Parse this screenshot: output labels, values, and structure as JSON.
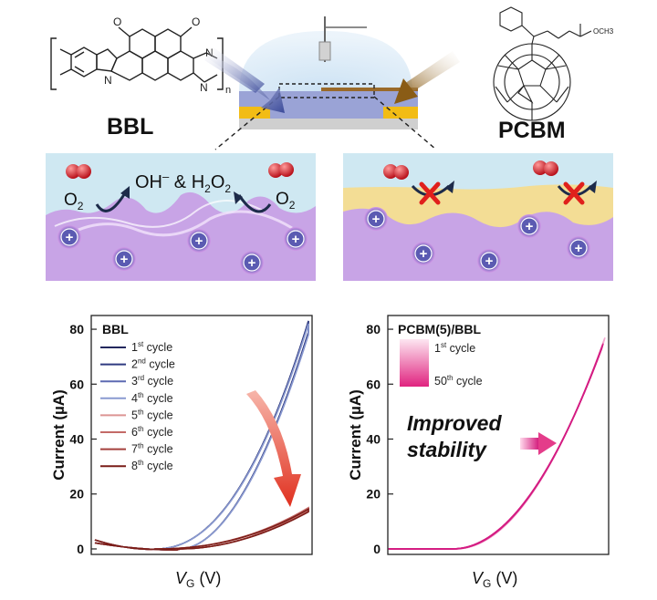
{
  "top": {
    "bbl_label": "BBL",
    "pcbm_label": "PCBM",
    "bbl_struct": {
      "o1": "O",
      "o2": "O",
      "n_label": "N",
      "n_sub": "n",
      "ch3o": "OCH3"
    },
    "ox_left": {
      "o2_a": "O",
      "o2_a_sub": "2",
      "oh": "OH",
      "oh_sup": "–",
      "amp": "&",
      "h2o2": "H",
      "h2o2_sub1": "2",
      "h2o2_o": "O",
      "h2o2_sub2": "2",
      "o2_b": "O",
      "o2_b_sub": "2"
    },
    "plus": "+"
  },
  "colors": {
    "bbl_line": "#2b3a77",
    "pcbm_fill": "#e12d8f",
    "red_arrow": "#e63a2c",
    "cross": "#e0201c",
    "polymer": "#c9a6e6",
    "electrolyte": "#cfe9f2",
    "pcbm_layer": "#f3dd95",
    "ion": "#5b5bb2"
  },
  "chart_data": [
    {
      "type": "line",
      "title": "BBL",
      "xlabel": "VG (V)",
      "ylabel": "Current (µA)",
      "ylim": [
        -2,
        85
      ],
      "yticks": [
        0,
        20,
        40,
        60,
        80
      ],
      "legend_position": "top-left",
      "grid": false,
      "series": [
        {
          "name": "1st cycle",
          "sup": "st",
          "base": "1",
          "color": "#23285e",
          "y_max": 83,
          "y_back": 79
        },
        {
          "name": "2nd cycle",
          "sup": "nd",
          "base": "2",
          "color": "#2f3a80",
          "y_max": 83,
          "y_back": 79
        },
        {
          "name": "3rd cycle",
          "sup": "rd",
          "base": "3",
          "color": "#5d6ab2",
          "y_max": 82,
          "y_back": 78
        },
        {
          "name": "4th cycle",
          "sup": "th",
          "base": "4",
          "color": "#8a9ad0",
          "y_max": 82,
          "y_back": 78
        },
        {
          "name": "5th cycle",
          "sup": "th",
          "base": "5",
          "color": "#dc9593",
          "y_max": 15,
          "y_back": 14
        },
        {
          "name": "6th cycle",
          "sup": "th",
          "base": "6",
          "color": "#c36a67",
          "y_max": 15,
          "y_back": 14
        },
        {
          "name": "7th cycle",
          "sup": "th",
          "base": "7",
          "color": "#a4403c",
          "y_max": 14.5,
          "y_back": 13.5
        },
        {
          "name": "8th cycle",
          "sup": "th",
          "base": "8",
          "color": "#7a1d18",
          "y_max": 14.5,
          "y_back": 13.5
        }
      ]
    },
    {
      "type": "line",
      "title": "PCBM(5)/BBL",
      "xlabel": "VG (V)",
      "ylabel": "Current (µA)",
      "ylim": [
        -2,
        85
      ],
      "yticks": [
        0,
        20,
        40,
        60,
        80
      ],
      "legend_position": "top-left",
      "grid": false,
      "legend": [
        {
          "label": "1st cycle",
          "base": "1",
          "sup": "st"
        },
        {
          "label": "50th cycle",
          "base": "50",
          "sup": "th"
        }
      ],
      "annotation": "Improved stability",
      "annotation_lines": [
        "Improved",
        "stability"
      ],
      "band_color_light": "#f4a7cf",
      "band_color_dark": "#d41c83",
      "y_max": 77
    }
  ],
  "axis": {
    "v": "V",
    "g_sub": "G",
    "v_unit": " (V)",
    "current": "Current (",
    "mu": "µ",
    "a_unit": "A)"
  }
}
